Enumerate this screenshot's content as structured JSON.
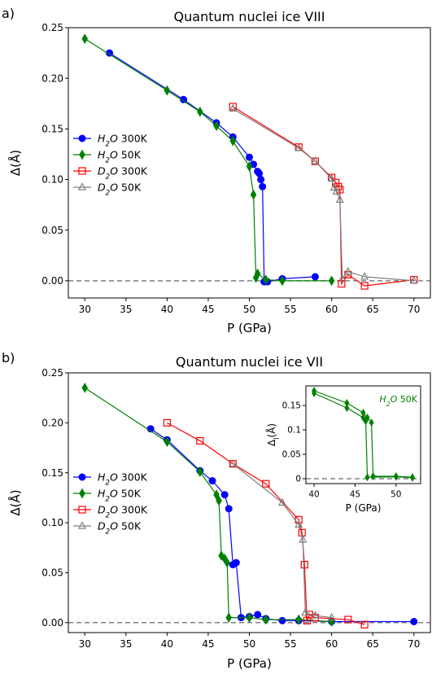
{
  "chart_data": [
    {
      "panel_label": "a)",
      "type": "line",
      "title": "Quantum nuclei ice VIII",
      "xlabel": "P (GPa)",
      "ylabel": "Δ(Å)",
      "xlim": [
        28,
        72
      ],
      "ylim": [
        -0.017,
        0.25
      ],
      "xticks": [
        30,
        35,
        40,
        45,
        50,
        55,
        60,
        65,
        70
      ],
      "yticks": [
        0.0,
        0.05,
        0.1,
        0.15,
        0.2,
        0.25
      ],
      "ytick_labels": [
        "0.00",
        "0.05",
        "0.10",
        "0.15",
        "0.20",
        "0.25"
      ],
      "legend_position": "center-left",
      "reference_line": {
        "y": 0,
        "style": "dashed",
        "color": "#808080"
      },
      "series": [
        {
          "name": "H2O 300K",
          "label_base": "H",
          "label_sub": "2",
          "label_tail": "O 300K",
          "color": "#0000ff",
          "marker": "circle",
          "points": [
            [
              33,
              0.225
            ],
            [
              42,
              0.179
            ],
            [
              46,
              0.156
            ],
            [
              48,
              0.142
            ],
            [
              50,
              0.122
            ],
            [
              50.5,
              0.115
            ],
            [
              51,
              0.108
            ],
            [
              51.2,
              0.106
            ],
            [
              51.4,
              0.1
            ],
            [
              51.6,
              0.093
            ],
            [
              51.8,
              -0.001
            ],
            [
              52.2,
              -0.001
            ],
            [
              54,
              0.002
            ],
            [
              58,
              0.004
            ]
          ]
        },
        {
          "name": "H2O 50K",
          "label_base": "H",
          "label_sub": "2",
          "label_tail": "O 50K",
          "color": "#008000",
          "marker": "diamond",
          "points": [
            [
              30,
              0.239
            ],
            [
              40,
              0.188
            ],
            [
              44,
              0.167
            ],
            [
              46,
              0.153
            ],
            [
              48,
              0.138
            ],
            [
              50,
              0.113
            ],
            [
              50.5,
              0.085
            ],
            [
              50.8,
              0.003
            ],
            [
              51,
              0.007
            ],
            [
              52,
              0.001
            ],
            [
              54,
              0.0
            ],
            [
              60,
              0.0
            ]
          ]
        },
        {
          "name": "D2O 300K",
          "label_base": "D",
          "label_sub": "2",
          "label_tail": "O 300K",
          "color": "#ff0000",
          "marker": "square",
          "points": [
            [
              48,
              0.172
            ],
            [
              56,
              0.132
            ],
            [
              58,
              0.118
            ],
            [
              60,
              0.102
            ],
            [
              60.5,
              0.097
            ],
            [
              60.8,
              0.093
            ],
            [
              61,
              0.09
            ],
            [
              61.2,
              -0.003
            ],
            [
              62,
              0.006
            ],
            [
              64,
              -0.005
            ],
            [
              70,
              0.001
            ]
          ]
        },
        {
          "name": "D2O 50K",
          "label_base": "D",
          "label_sub": "2",
          "label_tail": "O 50K",
          "color": "#808080",
          "marker": "triangle",
          "points": [
            [
              48,
              0.17
            ],
            [
              56,
              0.131
            ],
            [
              58,
              0.118
            ],
            [
              60,
              0.101
            ],
            [
              60.3,
              0.092
            ],
            [
              60.6,
              0.088
            ],
            [
              61,
              0.08
            ],
            [
              61.3,
              0.002
            ],
            [
              62,
              0.009
            ],
            [
              64,
              0.004
            ],
            [
              70,
              0.0
            ]
          ]
        }
      ]
    },
    {
      "panel_label": "b)",
      "type": "line",
      "title": "Quantum nuclei ice VII",
      "xlabel": "P (GPa)",
      "ylabel": "Δ(Å)",
      "xlim": [
        28,
        72
      ],
      "ylim": [
        -0.01,
        0.25
      ],
      "xticks": [
        30,
        35,
        40,
        45,
        50,
        55,
        60,
        65,
        70
      ],
      "yticks": [
        0.0,
        0.05,
        0.1,
        0.15,
        0.2,
        0.25
      ],
      "ytick_labels": [
        "0.00",
        "0.05",
        "0.10",
        "0.15",
        "0.20",
        "0.25"
      ],
      "legend_position": "center-left",
      "reference_line": {
        "y": 0,
        "style": "dashed",
        "color": "#808080"
      },
      "series": [
        {
          "name": "H2O 300K",
          "label_base": "H",
          "label_sub": "2",
          "label_tail": "O 300K",
          "color": "#0000ff",
          "marker": "circle",
          "points": [
            [
              38,
              0.194
            ],
            [
              40,
              0.183
            ],
            [
              44,
              0.152
            ],
            [
              45.5,
              0.142
            ],
            [
              47,
              0.128
            ],
            [
              47.5,
              0.114
            ],
            [
              48,
              0.058
            ],
            [
              48.4,
              0.06
            ],
            [
              49,
              0.005
            ],
            [
              50,
              0.006
            ],
            [
              51,
              0.008
            ],
            [
              52,
              0.004
            ],
            [
              54,
              0.002
            ],
            [
              56,
              0.002
            ],
            [
              60,
              0.001
            ],
            [
              70,
              0.001
            ]
          ]
        },
        {
          "name": "H2O 50K",
          "label_base": "H",
          "label_sub": "2",
          "label_tail": "O 50K",
          "color": "#008000",
          "marker": "diamond",
          "points": [
            [
              30,
              0.235
            ],
            [
              40,
              0.181
            ],
            [
              44,
              0.151
            ],
            [
              46,
              0.128
            ],
            [
              46.3,
              0.122
            ],
            [
              46.6,
              0.067
            ],
            [
              47,
              0.064
            ],
            [
              47.3,
              0.06
            ],
            [
              47.5,
              0.005
            ],
            [
              50,
              0.005
            ],
            [
              52,
              0.003
            ],
            [
              56,
              0.003
            ],
            [
              60,
              0.001
            ]
          ]
        },
        {
          "name": "D2O 300K",
          "label_base": "D",
          "label_sub": "2",
          "label_tail": "O 300K",
          "color": "#ff0000",
          "marker": "square",
          "points": [
            [
              40,
              0.2
            ],
            [
              44,
              0.182
            ],
            [
              48,
              0.159
            ],
            [
              52,
              0.139
            ],
            [
              56,
              0.103
            ],
            [
              56.4,
              0.09
            ],
            [
              56.7,
              0.058
            ],
            [
              57,
              0.002
            ],
            [
              57.3,
              0.008
            ],
            [
              58,
              0.005
            ],
            [
              62,
              0.003
            ],
            [
              64,
              -0.002
            ]
          ]
        },
        {
          "name": "D2O 50K",
          "label_base": "D",
          "label_sub": "2",
          "label_tail": "O 50K",
          "color": "#808080",
          "marker": "triangle",
          "points": [
            [
              48,
              0.159
            ],
            [
              54,
              0.12
            ],
            [
              56,
              0.098
            ],
            [
              56.5,
              0.083
            ],
            [
              56.8,
              0.01
            ],
            [
              58,
              0.007
            ],
            [
              60,
              0.005
            ]
          ]
        }
      ]
    },
    {
      "panel_label": "b) inset",
      "type": "line",
      "title": "",
      "xlabel": "P (GPa)",
      "ylabel": "Δ",
      "ylabel_sub": "l",
      "ylabel_tail": "(Å)",
      "xlim": [
        39,
        53
      ],
      "ylim": [
        -0.01,
        0.19
      ],
      "xticks": [
        40,
        45,
        50
      ],
      "yticks": [
        0.0,
        0.05,
        0.1,
        0.15
      ],
      "ytick_labels": [
        "0",
        "0.05",
        "0.1",
        "0.15"
      ],
      "annotation": {
        "base": "H",
        "sub": "2",
        "tail": "O 50K",
        "color": "#008000"
      },
      "reference_line": {
        "y": 0,
        "style": "dashed",
        "color": "#808080"
      },
      "series": [
        {
          "name": "H2O 50K a",
          "color": "#008000",
          "marker": "diamond",
          "points": [
            [
              40,
              0.18
            ],
            [
              44,
              0.155
            ],
            [
              46,
              0.135
            ],
            [
              46.5,
              0.125
            ],
            [
              47,
              0.115
            ],
            [
              47.2,
              0.005
            ],
            [
              50,
              0.005
            ],
            [
              52,
              0.003
            ]
          ]
        },
        {
          "name": "H2O 50K b",
          "color": "#008000",
          "marker": "diamond",
          "points": [
            [
              40,
              0.175
            ],
            [
              44,
              0.145
            ],
            [
              46,
              0.125
            ],
            [
              46.3,
              0.118
            ],
            [
              46.5,
              0.003
            ],
            [
              50,
              0.004
            ],
            [
              52,
              0.002
            ]
          ]
        }
      ]
    }
  ]
}
